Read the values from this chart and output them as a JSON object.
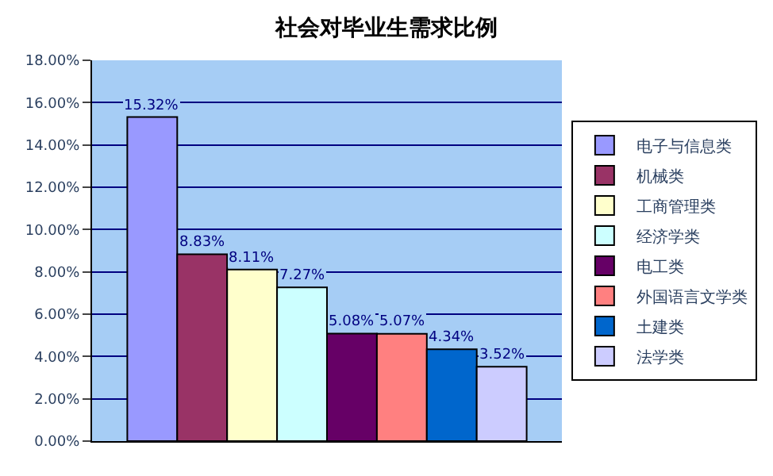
{
  "chart_data": {
    "type": "bar",
    "title": "社会对毕业生需求比例",
    "categories": [
      null
    ],
    "series": [
      {
        "name": "电子与信息类",
        "color": "#9999ff",
        "values": [
          15.32
        ],
        "value_labels": [
          "15.32%"
        ]
      },
      {
        "name": "机械类",
        "color": "#993366",
        "values": [
          8.83
        ],
        "value_labels": [
          "8.83%"
        ]
      },
      {
        "name": "工商管理类",
        "color": "#ffffcc",
        "values": [
          8.11
        ],
        "value_labels": [
          "8.11%"
        ]
      },
      {
        "name": "经济学类",
        "color": "#ccffff",
        "values": [
          7.27
        ],
        "value_labels": [
          "7.27%"
        ]
      },
      {
        "name": "电工类",
        "color": "#660066",
        "values": [
          5.08
        ],
        "value_labels": [
          "5.08%"
        ]
      },
      {
        "name": "外国语言文学类",
        "color": "#ff8080",
        "values": [
          5.07
        ],
        "value_labels": [
          "5.07%"
        ]
      },
      {
        "name": "土建类",
        "color": "#0066cc",
        "values": [
          4.34
        ],
        "value_labels": [
          "4.34%"
        ]
      },
      {
        "name": "法学类",
        "color": "#ccccff",
        "values": [
          3.52
        ],
        "value_labels": [
          "3.52%"
        ]
      }
    ],
    "ylim": [
      0,
      18
    ],
    "yticks": [
      {
        "value": 0,
        "label": "0.00%"
      },
      {
        "value": 2,
        "label": "2.00%"
      },
      {
        "value": 4,
        "label": "4.00%"
      },
      {
        "value": 6,
        "label": "6.00%"
      },
      {
        "value": 8,
        "label": "8.00%"
      },
      {
        "value": 10,
        "label": "10.00%"
      },
      {
        "value": 12,
        "label": "12.00%"
      },
      {
        "value": 14,
        "label": "14.00%"
      },
      {
        "value": 16,
        "label": "16.00%"
      },
      {
        "value": 18,
        "label": "18.00%"
      }
    ],
    "grid": "y",
    "legend": "right",
    "tick_labels": "y"
  }
}
